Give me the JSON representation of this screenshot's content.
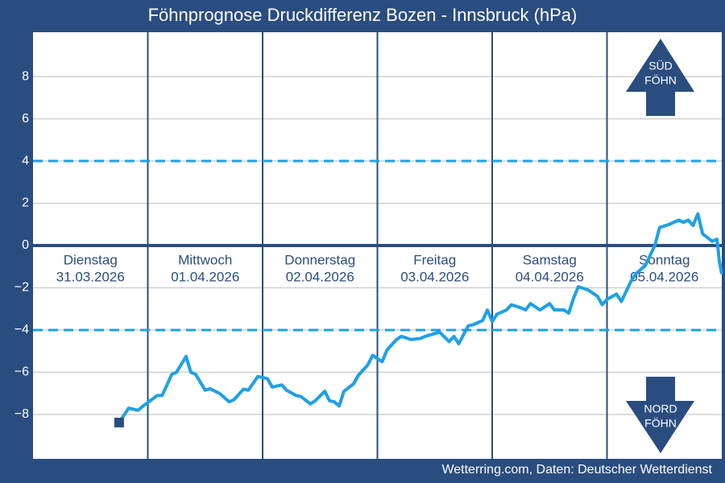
{
  "chart_data": {
    "type": "line",
    "title": "Föhnprognose Druckdifferenz Bozen - Innsbruck (hPa)",
    "source": "Wetterring.com, Daten: Deutscher Wetterdienst",
    "days": [
      {
        "name": "Dienstag",
        "date": "31.03.2026"
      },
      {
        "name": "Mittwoch",
        "date": "01.04.2026"
      },
      {
        "name": "Donnerstag",
        "date": "02.04.2026"
      },
      {
        "name": "Freitag",
        "date": "03.04.2026"
      },
      {
        "name": "Samstag",
        "date": "04.04.2026"
      },
      {
        "name": "Sonntag",
        "date": "05.04.2026"
      }
    ],
    "annotations": [
      {
        "lines": [
          "SÜD",
          "FÖHN"
        ]
      },
      {
        "lines": [
          "NORD",
          "FÖHN"
        ]
      }
    ],
    "x": [
      18,
      20,
      22,
      23,
      26,
      27,
      29,
      30,
      32,
      33,
      34,
      36,
      37,
      39,
      41,
      42,
      44,
      45,
      47,
      49,
      50,
      52,
      53,
      55,
      56,
      58,
      59,
      61,
      62,
      63,
      64,
      65,
      67,
      68,
      70,
      71,
      73,
      74,
      76,
      77,
      79,
      81,
      82,
      85,
      87,
      88,
      89,
      91,
      92,
      94,
      95,
      96,
      97,
      99,
      100,
      102,
      103,
      104,
      106,
      108,
      109,
      111,
      112,
      113,
      114,
      116,
      118,
      119,
      120,
      122,
      123,
      125,
      126,
      128,
      130,
      131,
      133,
      135,
      136,
      137,
      138,
      139,
      140,
      142,
      143,
      143.5,
      144
    ],
    "xlim": [
      0,
      144
    ],
    "series": [
      {
        "color": "#1ea0e6",
        "values": [
          -8.38,
          -7.7,
          -7.8,
          -7.6,
          -7.1,
          -7.1,
          -6.1,
          -6.0,
          -5.25,
          -6.0,
          -6.1,
          -6.85,
          -6.78,
          -7.0,
          -7.4,
          -7.3,
          -6.8,
          -6.85,
          -6.2,
          -6.3,
          -6.7,
          -6.6,
          -6.85,
          -7.1,
          -7.15,
          -7.5,
          -7.35,
          -6.9,
          -7.35,
          -7.4,
          -7.6,
          -6.9,
          -6.55,
          -6.15,
          -5.65,
          -5.2,
          -5.5,
          -4.95,
          -4.45,
          -4.3,
          -4.45,
          -4.4,
          -4.3,
          -4.1,
          -4.55,
          -4.3,
          -4.65,
          -3.8,
          -3.75,
          -3.55,
          -3.05,
          -3.6,
          -3.25,
          -3.05,
          -2.8,
          -2.95,
          -3.05,
          -2.75,
          -3.05,
          -2.75,
          -3.05,
          -3.05,
          -3.2,
          -2.5,
          -1.95,
          -2.1,
          -2.4,
          -2.8,
          -2.55,
          -2.3,
          -2.65,
          -1.7,
          -1.35,
          -0.95,
          0,
          0.85,
          1.0,
          1.2,
          1.1,
          1.2,
          0.95,
          1.5,
          0.55,
          0.2,
          0.3,
          -0.75,
          -1.35
        ]
      }
    ],
    "ylim": [
      -10.1,
      10.1
    ],
    "yticks": [
      {
        "value": -8,
        "label": "−8"
      },
      {
        "value": -6,
        "label": "−6"
      },
      {
        "value": -4,
        "label": "−4"
      },
      {
        "value": -2,
        "label": "−2"
      },
      0,
      2,
      4,
      6,
      8
    ],
    "threshold_lines": [
      -4,
      4
    ],
    "zero_line": 0,
    "grid": true
  }
}
